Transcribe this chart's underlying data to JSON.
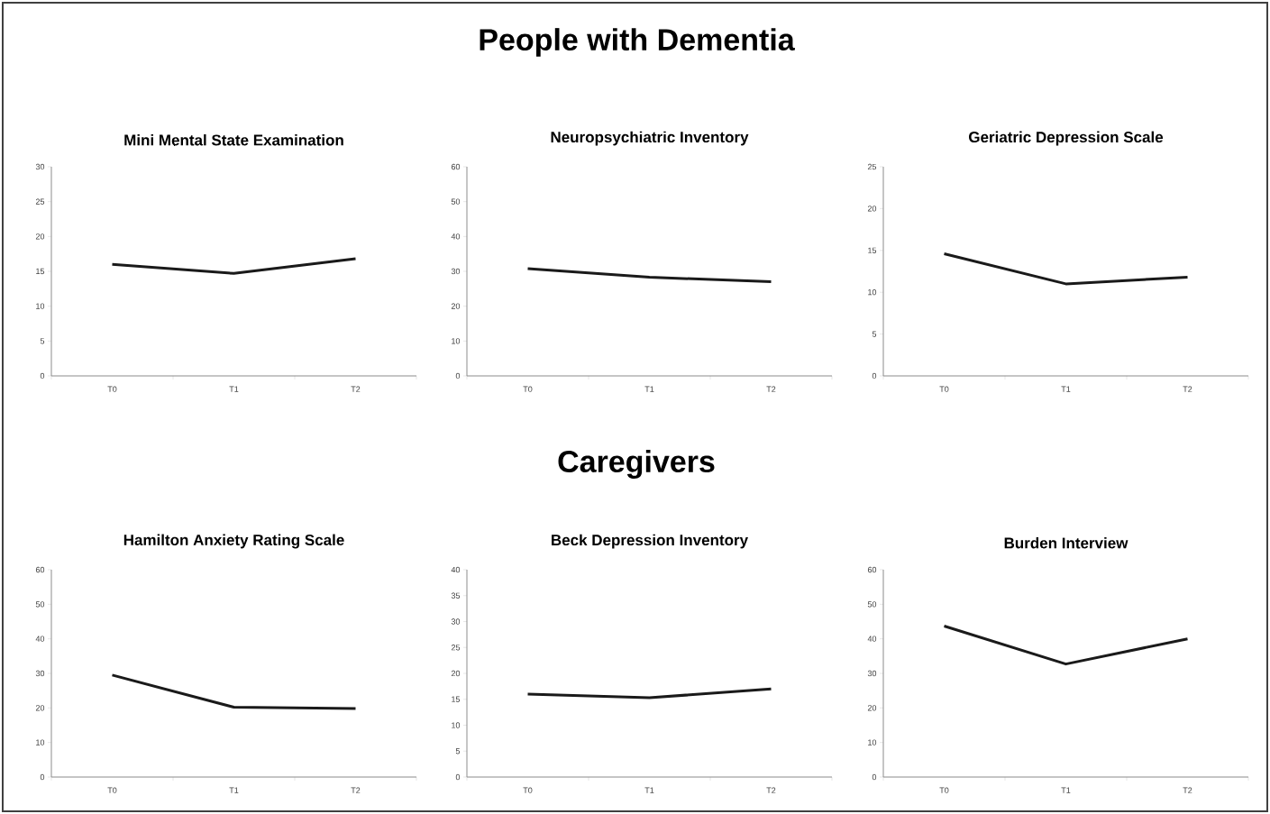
{
  "chart_data": [
    {
      "type": "line",
      "title": "Mini Mental State Examination",
      "annotations": [
        "People with Dementia"
      ],
      "categories": [
        "T0",
        "T1",
        "T2"
      ],
      "values": [
        16,
        14.7,
        16.8
      ],
      "color": "#1a1a1a",
      "ylim": [
        0,
        30
      ],
      "yticks": [
        0,
        5,
        10,
        15,
        20,
        25,
        30
      ]
    },
    {
      "type": "line",
      "title": "Neuropsychiatric Inventory",
      "categories": [
        "T0",
        "T1",
        "T2"
      ],
      "values": [
        30.8,
        28.3,
        27
      ],
      "color": "#1a1a1a",
      "ylim": [
        0,
        60
      ],
      "yticks": [
        0,
        10,
        20,
        30,
        40,
        50,
        60
      ]
    },
    {
      "type": "line",
      "title": "Geriatric Depression Scale",
      "categories": [
        "T0",
        "T1",
        "T2"
      ],
      "values": [
        14.6,
        11,
        11.8
      ],
      "color": "#1a1a1a",
      "ylim": [
        0,
        25
      ],
      "yticks": [
        0,
        5,
        10,
        15,
        20,
        25
      ]
    },
    {
      "type": "line",
      "title": "Hamilton Anxiety Rating Scale",
      "annotations": [
        "Caregivers"
      ],
      "categories": [
        "T0",
        "T1",
        "T2"
      ],
      "values": [
        29.5,
        20.2,
        19.8
      ],
      "color": "#1a1a1a",
      "ylim": [
        0,
        60
      ],
      "yticks": [
        0,
        10,
        20,
        30,
        40,
        50,
        60
      ]
    },
    {
      "type": "line",
      "title": "Beck Depression Inventory",
      "categories": [
        "T0",
        "T1",
        "T2"
      ],
      "values": [
        16,
        15.3,
        17
      ],
      "color": "#1a1a1a",
      "ylim": [
        0,
        40
      ],
      "yticks": [
        0,
        5,
        10,
        15,
        20,
        25,
        30,
        35,
        40
      ]
    },
    {
      "type": "line",
      "title": "Burden Interview",
      "categories": [
        "T0",
        "T1",
        "T2"
      ],
      "values": [
        43.7,
        32.7,
        40
      ],
      "color": "#1a1a1a",
      "ylim": [
        0,
        60
      ],
      "yticks": [
        0,
        10,
        20,
        30,
        40,
        50,
        60
      ]
    }
  ]
}
